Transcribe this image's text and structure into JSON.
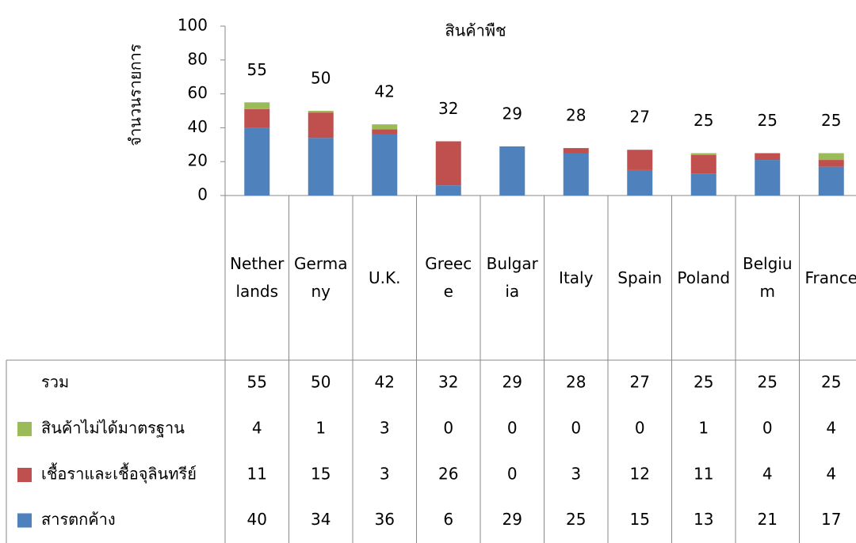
{
  "chart_data": {
    "type": "stacked_bar",
    "title": "สินค้าพืช",
    "y_label": "จำนวนรายการ",
    "categories": [
      "Netherlands",
      "Germany",
      "U.K.",
      "Greece",
      "Bulgaria",
      "Italy",
      "Spain",
      "Poland",
      "Belgium",
      "France"
    ],
    "series": [
      {
        "name": "สารตกค้าง",
        "color": "#4f81bd",
        "values": [
          40,
          34,
          36,
          6,
          29,
          25,
          15,
          13,
          21,
          17
        ]
      },
      {
        "name": "เชื้อราและเชื้อจุลินทรีย์",
        "color": "#c0504d",
        "values": [
          11,
          15,
          3,
          26,
          0,
          3,
          12,
          11,
          4,
          4
        ]
      },
      {
        "name": "สินค้าไม่ได้มาตรฐาน",
        "color": "#9bbb59",
        "values": [
          4,
          1,
          3,
          0,
          0,
          0,
          0,
          1,
          0,
          4
        ]
      }
    ],
    "total_label": "รวม",
    "totals": [
      55,
      50,
      42,
      32,
      29,
      28,
      27,
      25,
      25,
      25
    ],
    "ylim": [
      0,
      100
    ],
    "yticks": [
      0,
      20,
      40,
      60,
      80,
      100
    ]
  }
}
